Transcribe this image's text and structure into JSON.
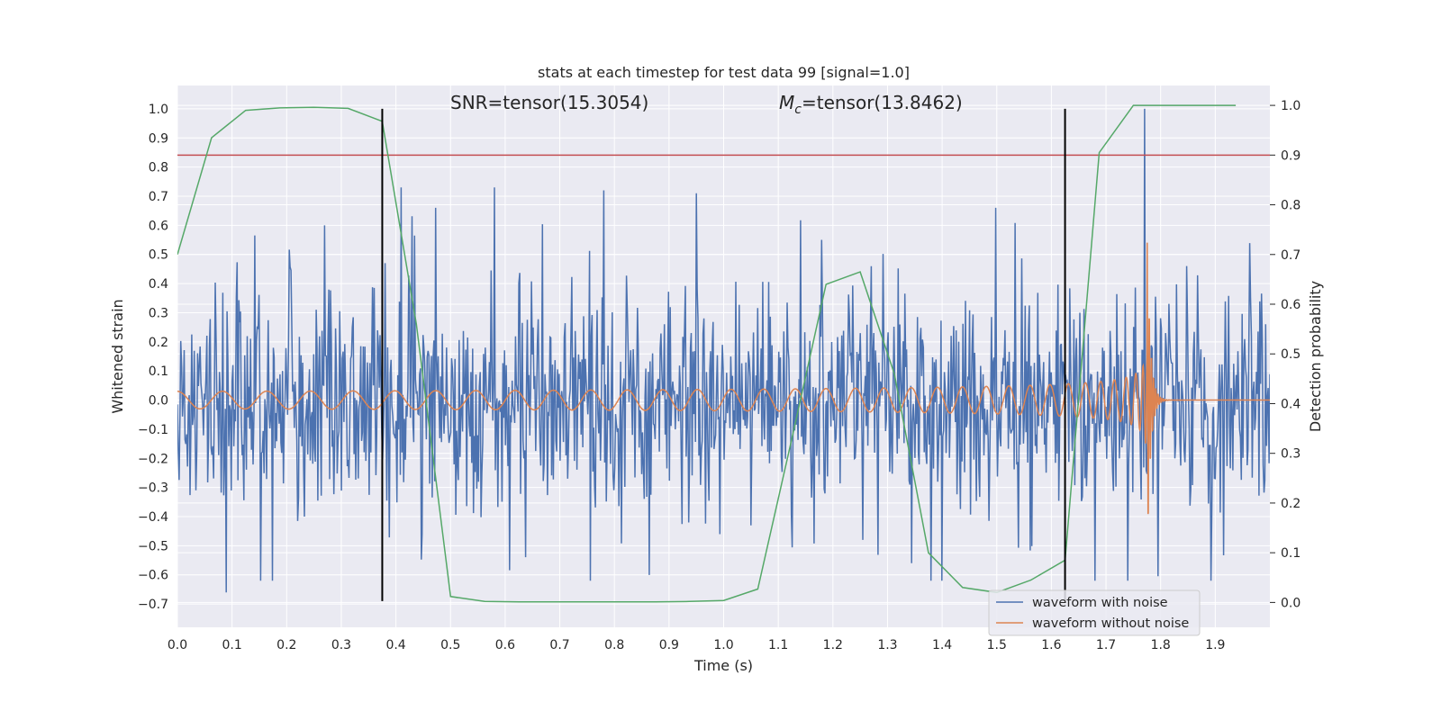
{
  "chart_data": {
    "type": "line",
    "title": "stats at each timestep for test data 99 [signal=1.0]",
    "xlabel": "Time (s)",
    "ylabel": "Whitened strain",
    "y2label": "Detection probability",
    "xlim": [
      0.0,
      2.0
    ],
    "ylim": [
      -0.78,
      1.08
    ],
    "y2lim": [
      -0.05,
      1.04
    ],
    "x_ticks": [
      "0.0",
      "0.1",
      "0.2",
      "0.3",
      "0.4",
      "0.5",
      "0.6",
      "0.7",
      "0.8",
      "0.9",
      "1.0",
      "1.1",
      "1.2",
      "1.3",
      "1.4",
      "1.5",
      "1.6",
      "1.7",
      "1.8",
      "1.9"
    ],
    "y_ticks": [
      "1.0",
      "0.9",
      "0.8",
      "0.7",
      "0.6",
      "0.5",
      "0.4",
      "0.3",
      "0.2",
      "0.1",
      "0.0",
      "−0.1",
      "−0.2",
      "−0.3",
      "−0.4",
      "−0.5",
      "−0.6",
      "−0.7"
    ],
    "y2_ticks": [
      "1.0",
      "0.9",
      "0.8",
      "0.7",
      "0.6",
      "0.5",
      "0.4",
      "0.3",
      "0.2",
      "0.1",
      "0.0"
    ],
    "grid": true,
    "legend_position": "lower-right",
    "annotations": {
      "snr": "SNR=tensor(15.3054)",
      "mc_symbol": "M",
      "mc_sub": "c",
      "mc_rest": "=tensor(13.8462)"
    },
    "series": [
      {
        "name": "waveform with noise",
        "color": "#4c72b0",
        "style": "noise",
        "amplitude_sd": 0.18,
        "peaks": [
          [
            0.09,
            -0.66
          ],
          [
            0.27,
            0.6
          ],
          [
            0.38,
            0.47
          ],
          [
            0.41,
            0.73
          ],
          [
            0.58,
            0.73
          ],
          [
            0.78,
            0.72
          ],
          [
            0.95,
            0.71
          ],
          [
            1.18,
            0.55
          ],
          [
            1.77,
            1.0
          ],
          [
            1.74,
            -0.62
          ]
        ]
      },
      {
        "name": "waveform without noise",
        "color": "#dd8452",
        "style": "chirp",
        "merger_time": 1.775,
        "base_amplitude": 0.03,
        "peak_amplitude": 0.61
      },
      {
        "name": "detection probability",
        "color": "#55a868",
        "axis": "right",
        "x": [
          0.0,
          0.0625,
          0.125,
          0.1875,
          0.25,
          0.3125,
          0.375,
          0.4375,
          0.5,
          0.5625,
          0.625,
          0.6875,
          0.75,
          0.8125,
          0.875,
          0.9375,
          1.0,
          1.0625,
          1.125,
          1.1875,
          1.25,
          1.3125,
          1.375,
          1.4375,
          1.5,
          1.5625,
          1.625,
          1.6875,
          1.75,
          1.8125,
          1.875,
          1.9375
        ],
        "values": [
          0.7,
          0.935,
          0.99,
          0.995,
          0.996,
          0.994,
          0.968,
          0.56,
          0.012,
          0.002,
          0.001,
          0.001,
          0.001,
          0.001,
          0.001,
          0.002,
          0.004,
          0.027,
          0.33,
          0.64,
          0.665,
          0.46,
          0.1,
          0.03,
          0.02,
          0.045,
          0.085,
          0.905,
          1.0,
          1.0,
          1.0,
          1.0
        ]
      }
    ],
    "threshold": {
      "axis": "right",
      "value": 0.9,
      "color": "#c44e52"
    },
    "vlines": [
      0.375,
      1.625
    ],
    "vline_range": [
      -0.69,
      1.0
    ]
  }
}
